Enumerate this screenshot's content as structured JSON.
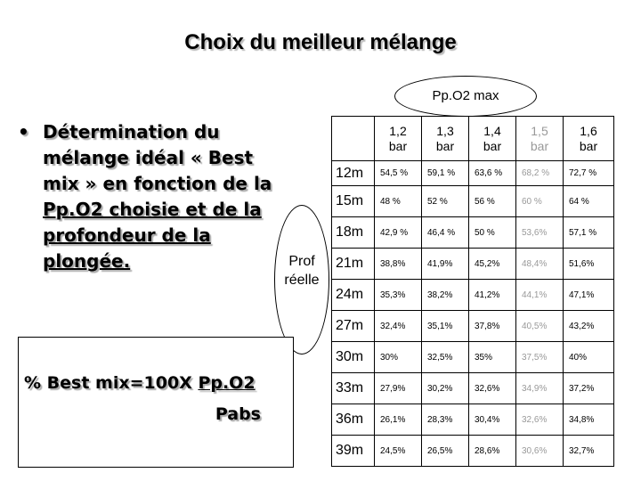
{
  "title": "Choix du meilleur mélange",
  "ppo2_label": "Pp.O2  max",
  "bullet": {
    "lines": [
      "Détermination du",
      "mélange idéal « Best",
      "mix » en fonction de la",
      "Pp.O2 choisie et de la",
      "profondeur de la",
      "plongée."
    ]
  },
  "depth_label": {
    "lines": [
      "Prof",
      "réelle"
    ]
  },
  "formula": {
    "prefix": "% Best mix=100X ",
    "numerator": "Pp.O2",
    "denominator": "Pabs"
  },
  "table": {
    "header": [
      [
        "1,2",
        "bar"
      ],
      [
        "1,3",
        "bar"
      ],
      [
        "1,4",
        "bar"
      ],
      [
        "1,5",
        "bar"
      ],
      [
        "1,6",
        "bar"
      ]
    ],
    "rows": [
      [
        "12m",
        "54,5 %",
        "59,1 %",
        "63,6 %",
        "68,2 %",
        "72,7 %"
      ],
      [
        "15m",
        "48 %",
        "52 %",
        "56 %",
        "60 %",
        "64 %"
      ],
      [
        "18m",
        "42,9 %",
        "46,4 %",
        "50 %",
        "53,6%",
        "57,1 %"
      ],
      [
        "21m",
        "38,8%",
        "41,9%",
        "45,2%",
        "48,4%",
        "51,6%"
      ],
      [
        "24m",
        "35,3%",
        "38,2%",
        "41,2%",
        "44,1%",
        "47,1%"
      ],
      [
        "27m",
        "32,4%",
        "35,1%",
        "37,8%",
        "40,5%",
        "43,2%"
      ],
      [
        "30m",
        "30%",
        "32,5%",
        "35%",
        "37,5%",
        "40%"
      ],
      [
        "33m",
        "27,9%",
        "30,2%",
        "32,6%",
        "34,9%",
        "37,2%"
      ],
      [
        "36m",
        "26,1%",
        "28,3%",
        "30,4%",
        "32,6%",
        "34,8%"
      ],
      [
        "39m",
        "24,5%",
        "26,5%",
        "28,6%",
        "30,6%",
        "32,7%"
      ]
    ]
  }
}
